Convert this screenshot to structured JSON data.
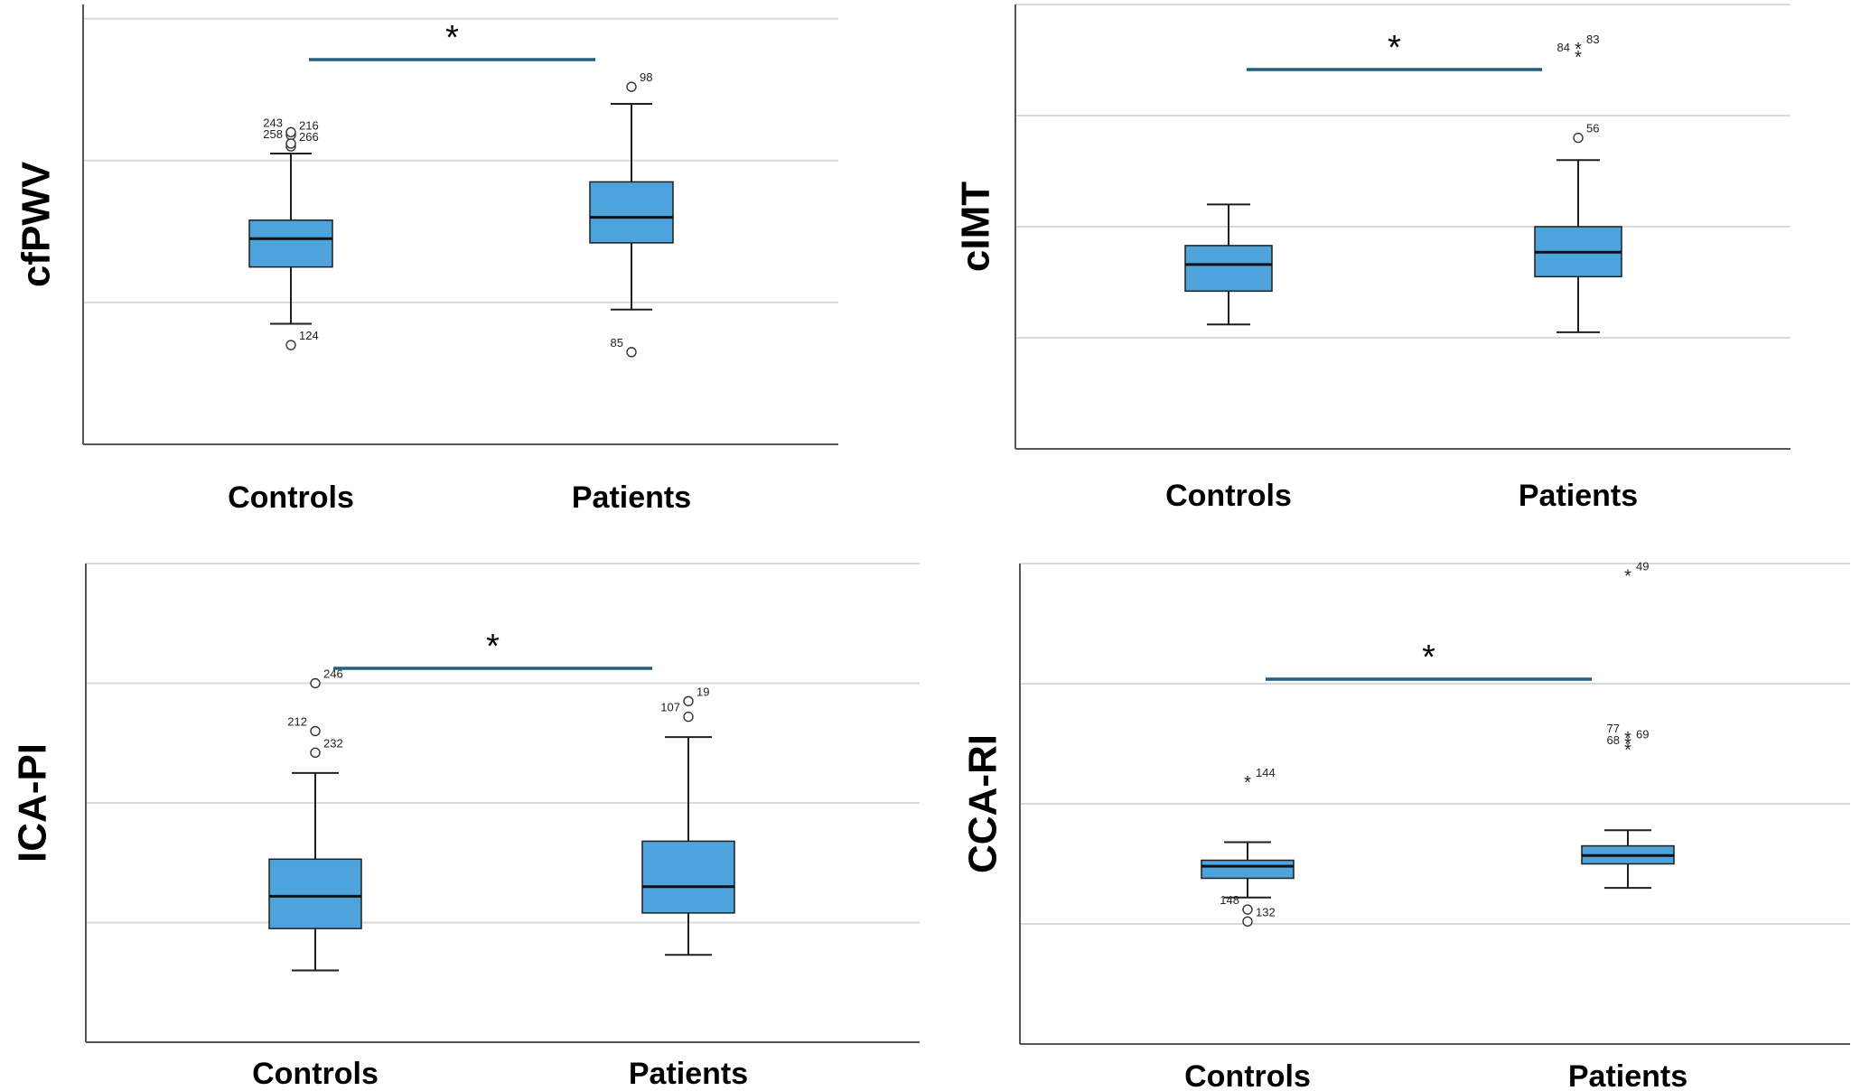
{
  "chart_data": [
    {
      "type": "boxplot",
      "ylabel": "cfPWV",
      "categories": [
        "Controls",
        "Patients"
      ],
      "ylim": [
        0,
        3.1
      ],
      "gridlines": [
        1,
        2,
        3
      ],
      "boxes": [
        {
          "category": "Controls",
          "whisker_low": 0.85,
          "q1": 1.25,
          "median": 1.45,
          "q3": 1.58,
          "whisker_high": 2.05,
          "outliers": [
            {
              "label": "216",
              "value": 2.18,
              "marker": "circle"
            },
            {
              "label": "243",
              "value": 2.2,
              "marker": "circle"
            },
            {
              "label": "266",
              "value": 2.1,
              "marker": "circle"
            },
            {
              "label": "258",
              "value": 2.12,
              "marker": "circle"
            },
            {
              "label": "124",
              "value": 0.7,
              "marker": "circle"
            }
          ]
        },
        {
          "category": "Patients",
          "whisker_low": 0.95,
          "q1": 1.42,
          "median": 1.6,
          "q3": 1.85,
          "whisker_high": 2.4,
          "outliers": [
            {
              "label": "98",
              "value": 2.52,
              "marker": "circle"
            },
            {
              "label": "85",
              "value": 0.65,
              "marker": "circle"
            }
          ]
        }
      ],
      "significance": {
        "between": [
          "Controls",
          "Patients"
        ],
        "symbol": "*"
      }
    },
    {
      "type": "boxplot",
      "ylabel": "cIMT",
      "categories": [
        "Controls",
        "Patients"
      ],
      "ylim": [
        0,
        4.0
      ],
      "gridlines": [
        1,
        2,
        3,
        4
      ],
      "boxes": [
        {
          "category": "Controls",
          "whisker_low": 1.12,
          "q1": 1.42,
          "median": 1.66,
          "q3": 1.83,
          "whisker_high": 2.2,
          "outliers": []
        },
        {
          "category": "Patients",
          "whisker_low": 1.05,
          "q1": 1.55,
          "median": 1.77,
          "q3": 2.0,
          "whisker_high": 2.6,
          "outliers": [
            {
              "label": "83",
              "value": 3.6,
              "marker": "star"
            },
            {
              "label": "84",
              "value": 3.53,
              "marker": "star"
            },
            {
              "label": "56",
              "value": 2.8,
              "marker": "circle"
            }
          ]
        }
      ],
      "significance": {
        "between": [
          "Controls",
          "Patients"
        ],
        "symbol": "*"
      }
    },
    {
      "type": "boxplot",
      "ylabel": "ICA-PI",
      "categories": [
        "Controls",
        "Patients"
      ],
      "ylim": [
        0,
        4.0
      ],
      "gridlines": [
        1,
        2,
        3,
        4
      ],
      "boxes": [
        {
          "category": "Controls",
          "whisker_low": 0.6,
          "q1": 0.95,
          "median": 1.22,
          "q3": 1.53,
          "whisker_high": 2.25,
          "outliers": [
            {
              "label": "246",
              "value": 3.0,
              "marker": "circle"
            },
            {
              "label": "212",
              "value": 2.6,
              "marker": "circle"
            },
            {
              "label": "232",
              "value": 2.42,
              "marker": "circle"
            }
          ]
        },
        {
          "category": "Patients",
          "whisker_low": 0.73,
          "q1": 1.08,
          "median": 1.3,
          "q3": 1.68,
          "whisker_high": 2.55,
          "outliers": [
            {
              "label": "19",
              "value": 2.85,
              "marker": "circle"
            },
            {
              "label": "107",
              "value": 2.72,
              "marker": "circle"
            }
          ]
        }
      ],
      "significance": {
        "between": [
          "Controls",
          "Patients"
        ],
        "symbol": "*"
      }
    },
    {
      "type": "boxplot",
      "ylabel": "CCA-RI",
      "categories": [
        "Controls",
        "Patients"
      ],
      "ylim": [
        0,
        4.0
      ],
      "gridlines": [
        1,
        2,
        3,
        4
      ],
      "boxes": [
        {
          "category": "Controls",
          "whisker_low": 1.22,
          "q1": 1.38,
          "median": 1.48,
          "q3": 1.53,
          "whisker_high": 1.68,
          "outliers": [
            {
              "label": "144",
              "value": 2.18,
              "marker": "star"
            },
            {
              "label": "148",
              "value": 1.12,
              "marker": "circle"
            },
            {
              "label": "132",
              "value": 1.02,
              "marker": "circle"
            }
          ]
        },
        {
          "category": "Patients",
          "whisker_low": 1.3,
          "q1": 1.5,
          "median": 1.57,
          "q3": 1.65,
          "whisker_high": 1.78,
          "outliers": [
            {
              "label": "49",
              "value": 3.9,
              "marker": "star"
            },
            {
              "label": "77",
              "value": 2.55,
              "marker": "star"
            },
            {
              "label": "69",
              "value": 2.5,
              "marker": "star"
            },
            {
              "label": "68",
              "value": 2.45,
              "marker": "star"
            }
          ]
        }
      ],
      "significance": {
        "between": [
          "Controls",
          "Patients"
        ],
        "symbol": "*"
      }
    }
  ],
  "colors": {
    "box_fill": "#4da3dc",
    "box_stroke": "#1f1f1f",
    "grid": "#d9d9d9",
    "axis": "#555555",
    "significance_bar": "#1f6080",
    "background": "#ffffff"
  }
}
